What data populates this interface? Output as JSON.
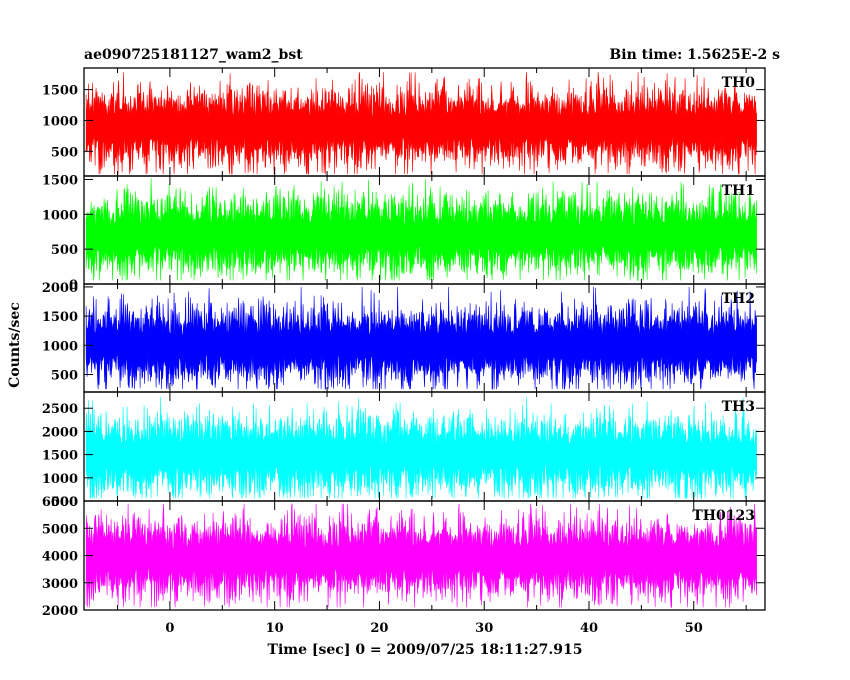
{
  "title_left": "ae090725181127_wam2_bst",
  "title_right": "Bin time: 1.5625E-2 s",
  "xlabel": "Time [sec] 0 = 2009/07/25 18:11:27.915",
  "ylabel": "Counts/sec",
  "chart_data": {
    "type": "line",
    "title": "ae090725181127_wam2_bst",
    "subtitle": "Bin time: 1.5625E-2 s",
    "xlabel": "Time [sec] 0 = 2009/07/25 18:11:27.915",
    "ylabel": "Counts/sec",
    "xlim": [
      -8.2,
      56.8
    ],
    "x_range": [
      -8.0,
      56.0
    ],
    "bin_time": 0.015625,
    "x_ticks": [
      0,
      10,
      20,
      30,
      40,
      50
    ],
    "grid": false,
    "series": [
      {
        "name": "TH0",
        "color": "#ff0000",
        "ylim": [
          100,
          1850
        ],
        "y_ticks": [
          500,
          1000,
          1500
        ],
        "mean": 900,
        "min": 130,
        "max": 1780
      },
      {
        "name": "TH1",
        "color": "#00ff00",
        "ylim": [
          0,
          1550
        ],
        "y_ticks": [
          0,
          500,
          1000,
          1500
        ],
        "mean": 700,
        "min": 50,
        "max": 1520
      },
      {
        "name": "TH2",
        "color": "#0000ff",
        "ylim": [
          200,
          2050
        ],
        "y_ticks": [
          500,
          1000,
          1500,
          2000
        ],
        "mean": 1000,
        "min": 250,
        "max": 2000
      },
      {
        "name": "TH3",
        "color": "#00ffff",
        "ylim": [
          500,
          2850
        ],
        "y_ticks": [
          500,
          1000,
          1500,
          2000,
          2500
        ],
        "mean": 1500,
        "min": 560,
        "max": 2800
      },
      {
        "name": "TH0123",
        "color": "#ff00ff",
        "ylim": [
          2000,
          6000
        ],
        "y_ticks": [
          2000,
          3000,
          4000,
          5000,
          6000
        ],
        "mean": 3900,
        "min": 2100,
        "max": 5900
      }
    ]
  }
}
